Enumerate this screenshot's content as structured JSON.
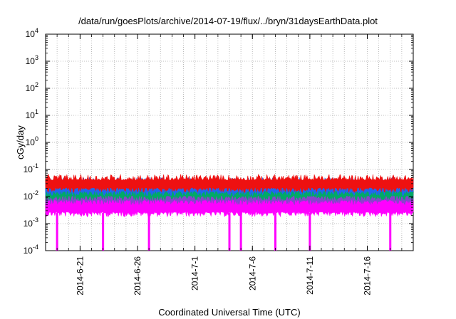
{
  "chart_data": {
    "type": "line",
    "title": "/data/run/goesPlots/archive/2014-07-19/flux/../bryn/31daysEarthData.plot",
    "xlabel": "Coordinated Universal Time (UTC)",
    "ylabel": "cGy/day",
    "xlim": [
      "2014-06-18",
      "2014-07-20"
    ],
    "ylim": [
      0.0001,
      10000
    ],
    "yscale": "log",
    "grid": true,
    "x_ticks": [
      "2014-6-21",
      "2014-6-26",
      "2014-7-1",
      "2014-7-6",
      "2014-7-11",
      "2014-7-16"
    ],
    "y_ticks": [
      {
        "base": "10",
        "exp": "-4",
        "value": 0.0001
      },
      {
        "base": "10",
        "exp": "-3",
        "value": 0.001
      },
      {
        "base": "10",
        "exp": "-2",
        "value": 0.01
      },
      {
        "base": "10",
        "exp": "-1",
        "value": 0.1
      },
      {
        "base": "10",
        "exp": "0",
        "value": 1
      },
      {
        "base": "10",
        "exp": "1",
        "value": 10
      },
      {
        "base": "10",
        "exp": "2",
        "value": 100
      },
      {
        "base": "10",
        "exp": "3",
        "value": 1000
      },
      {
        "base": "10",
        "exp": "4",
        "value": 10000
      }
    ],
    "series": [
      {
        "color": "#ee1111",
        "typical_min": 0.02,
        "typical_max": 0.045
      },
      {
        "color": "#2266ee",
        "typical_min": 0.015,
        "typical_max": 0.035
      },
      {
        "color": "#00aa66",
        "typical_min": 0.01,
        "typical_max": 0.022
      },
      {
        "color": "#8844cc",
        "typical_min": 0.007,
        "typical_max": 0.015
      },
      {
        "color": "#ff00ff",
        "typical_min": 0.0025,
        "typical_max": 0.012,
        "dropouts": [
          "2014-06-19",
          "2014-06-23",
          "2014-06-27",
          "2014-07-04",
          "2014-07-05",
          "2014-07-08",
          "2014-07-11",
          "2014-07-18"
        ],
        "dropout_value": 0.0001
      }
    ]
  }
}
